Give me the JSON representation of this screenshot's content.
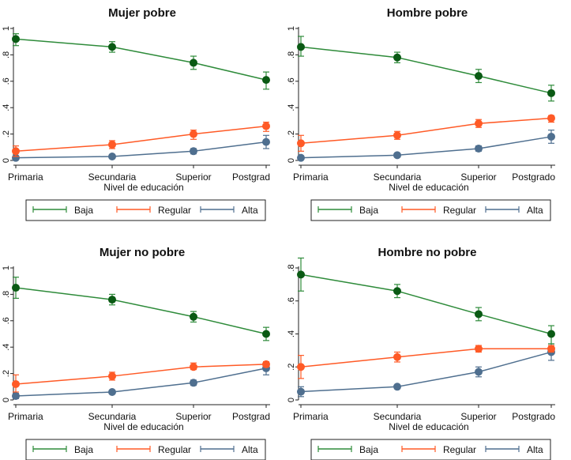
{
  "colors": {
    "Baja": "#2e8b3a",
    "Regular": "#ff5a26",
    "Alta": "#4f6f8f",
    "marker_Baja": "#0a5a14"
  },
  "chart_data": [
    {
      "type": "line",
      "title": "Mujer pobre",
      "xlabel": "Nivel de educación",
      "categories": [
        "Primaria",
        "Secundaria",
        "Superior",
        "Postgrad"
      ],
      "yticks": [
        "0",
        ".2",
        ".4",
        ".6",
        ".8",
        "1"
      ],
      "ylim": [
        0,
        1
      ],
      "legend": "bottom",
      "series": [
        {
          "name": "Baja",
          "values": [
            0.92,
            0.86,
            0.74,
            0.61
          ],
          "ci": [
            [
              0.87,
              0.96
            ],
            [
              0.82,
              0.9
            ],
            [
              0.69,
              0.79
            ],
            [
              0.54,
              0.67
            ]
          ]
        },
        {
          "name": "Regular",
          "values": [
            0.07,
            0.12,
            0.2,
            0.26
          ],
          "ci": [
            [
              0.03,
              0.11
            ],
            [
              0.09,
              0.15
            ],
            [
              0.16,
              0.23
            ],
            [
              0.22,
              0.29
            ]
          ]
        },
        {
          "name": "Alta",
          "values": [
            0.02,
            0.03,
            0.07,
            0.14
          ],
          "ci": [
            [
              0.01,
              0.03
            ],
            [
              0.02,
              0.04
            ],
            [
              0.05,
              0.09
            ],
            [
              0.09,
              0.19
            ]
          ]
        }
      ]
    },
    {
      "type": "line",
      "title": "Hombre pobre",
      "xlabel": "Nivel de educación",
      "categories": [
        "Primaria",
        "Secundaria",
        "Superior",
        "Postgrado"
      ],
      "yticks": [
        "0",
        ".2",
        ".4",
        ".6",
        ".8",
        "1"
      ],
      "ylim": [
        0,
        1
      ],
      "legend": "bottom",
      "series": [
        {
          "name": "Baja",
          "values": [
            0.86,
            0.78,
            0.64,
            0.51
          ],
          "ci": [
            [
              0.79,
              0.94
            ],
            [
              0.74,
              0.82
            ],
            [
              0.59,
              0.69
            ],
            [
              0.45,
              0.57
            ]
          ]
        },
        {
          "name": "Regular",
          "values": [
            0.13,
            0.19,
            0.28,
            0.32
          ],
          "ci": [
            [
              0.07,
              0.19
            ],
            [
              0.16,
              0.22
            ],
            [
              0.25,
              0.31
            ],
            [
              0.29,
              0.34
            ]
          ]
        },
        {
          "name": "Alta",
          "values": [
            0.02,
            0.04,
            0.09,
            0.18
          ],
          "ci": [
            [
              0.01,
              0.03
            ],
            [
              0.03,
              0.05
            ],
            [
              0.07,
              0.11
            ],
            [
              0.13,
              0.23
            ]
          ]
        }
      ]
    },
    {
      "type": "line",
      "title": "Mujer no pobre",
      "xlabel": "Nivel de educación",
      "categories": [
        "Primaria",
        "Secundaria",
        "Superior",
        "Postgrad"
      ],
      "yticks": [
        "0",
        ".2",
        ".4",
        ".6",
        ".8",
        "1"
      ],
      "ylim": [
        0,
        1
      ],
      "legend": "bottom",
      "series": [
        {
          "name": "Baja",
          "values": [
            0.85,
            0.76,
            0.63,
            0.5
          ],
          "ci": [
            [
              0.77,
              0.93
            ],
            [
              0.72,
              0.8
            ],
            [
              0.59,
              0.67
            ],
            [
              0.45,
              0.55
            ]
          ]
        },
        {
          "name": "Regular",
          "values": [
            0.12,
            0.18,
            0.25,
            0.27
          ],
          "ci": [
            [
              0.06,
              0.19
            ],
            [
              0.15,
              0.21
            ],
            [
              0.23,
              0.28
            ],
            [
              0.25,
              0.29
            ]
          ]
        },
        {
          "name": "Alta",
          "values": [
            0.03,
            0.06,
            0.13,
            0.24
          ],
          "ci": [
            [
              0.01,
              0.05
            ],
            [
              0.05,
              0.07
            ],
            [
              0.11,
              0.15
            ],
            [
              0.19,
              0.28
            ]
          ]
        }
      ]
    },
    {
      "type": "line",
      "title": "Hombre no pobre",
      "xlabel": "Nivel de educación",
      "categories": [
        "Primaria",
        "Secundaria",
        "Superior",
        "Postgrado"
      ],
      "yticks": [
        "0",
        ".2",
        ".4",
        ".6",
        ".8"
      ],
      "ylim": [
        0,
        0.8
      ],
      "legend": "bottom",
      "series": [
        {
          "name": "Baja",
          "values": [
            0.76,
            0.66,
            0.52,
            0.4
          ],
          "ci": [
            [
              0.66,
              0.86
            ],
            [
              0.62,
              0.7
            ],
            [
              0.48,
              0.56
            ],
            [
              0.34,
              0.45
            ]
          ]
        },
        {
          "name": "Regular",
          "values": [
            0.2,
            0.26,
            0.31,
            0.31
          ],
          "ci": [
            [
              0.13,
              0.27
            ],
            [
              0.23,
              0.29
            ],
            [
              0.29,
              0.33
            ],
            [
              0.29,
              0.33
            ]
          ]
        },
        {
          "name": "Alta",
          "values": [
            0.05,
            0.08,
            0.17,
            0.29
          ],
          "ci": [
            [
              0.02,
              0.08
            ],
            [
              0.07,
              0.09
            ],
            [
              0.14,
              0.2
            ],
            [
              0.24,
              0.34
            ]
          ]
        }
      ]
    }
  ]
}
